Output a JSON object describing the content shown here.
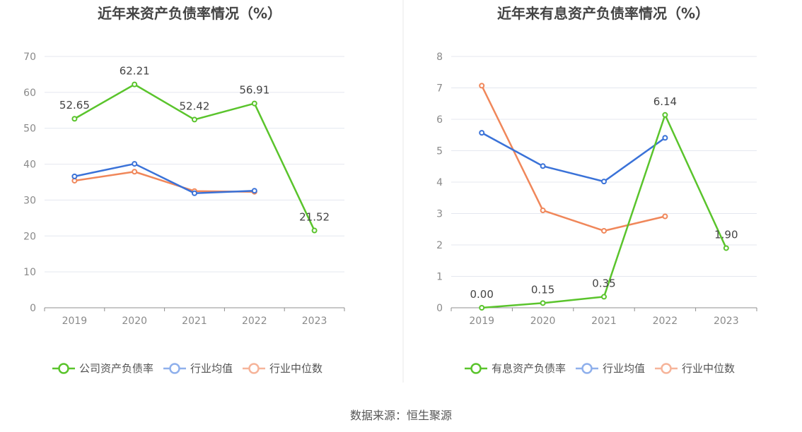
{
  "colors": {
    "company": "#5ac42c",
    "industry_avg": "#3a72d8",
    "industry_median": "#f0875a",
    "avg_legend": "#8fb0ec",
    "median_legend": "#f6b49a",
    "grid": "#e4e7ef",
    "axis": "#8f8f8f",
    "divider": "#e8e8e8"
  },
  "charts": {
    "left": {
      "chart_data": {
        "type": "line",
        "title": "近年来资产负债率情况（%）",
        "categories": [
          "2019",
          "2020",
          "2021",
          "2022",
          "2023"
        ],
        "ylim": [
          0,
          70
        ],
        "yticks": [
          0,
          10,
          20,
          30,
          40,
          50,
          60,
          70
        ],
        "grid": true,
        "legend_position": "bottom",
        "series": [
          {
            "name": "公司资产负债率",
            "values": [
              52.65,
              62.21,
              52.42,
              56.91,
              21.52
            ],
            "labels": [
              "52.65",
              "62.21",
              "52.42",
              "56.91",
              "21.52"
            ]
          },
          {
            "name": "行业均值",
            "values": [
              36.6,
              40.1,
              31.9,
              32.6,
              null
            ]
          },
          {
            "name": "行业中位数",
            "values": [
              35.4,
              37.9,
              32.5,
              32.3,
              null
            ]
          }
        ]
      }
    },
    "right": {
      "chart_data": {
        "type": "line",
        "title": "近年来有息资产负债率情况（%）",
        "categories": [
          "2019",
          "2020",
          "2021",
          "2022",
          "2023"
        ],
        "ylim": [
          0,
          8
        ],
        "yticks": [
          0,
          1,
          2,
          3,
          4,
          5,
          6,
          7,
          8
        ],
        "grid": true,
        "legend_position": "bottom",
        "series": [
          {
            "name": "有息资产负债率",
            "values": [
              0.0,
              0.15,
              0.35,
              6.14,
              1.9
            ],
            "labels": [
              "0.00",
              "0.15",
              "0.35",
              "6.14",
              "1.90"
            ]
          },
          {
            "name": "行业均值",
            "values": [
              5.57,
              4.51,
              4.02,
              5.41,
              null
            ]
          },
          {
            "name": "行业中位数",
            "values": [
              7.07,
              3.1,
              2.45,
              2.91,
              null
            ]
          }
        ]
      }
    }
  },
  "source": "数据来源：恒生聚源"
}
